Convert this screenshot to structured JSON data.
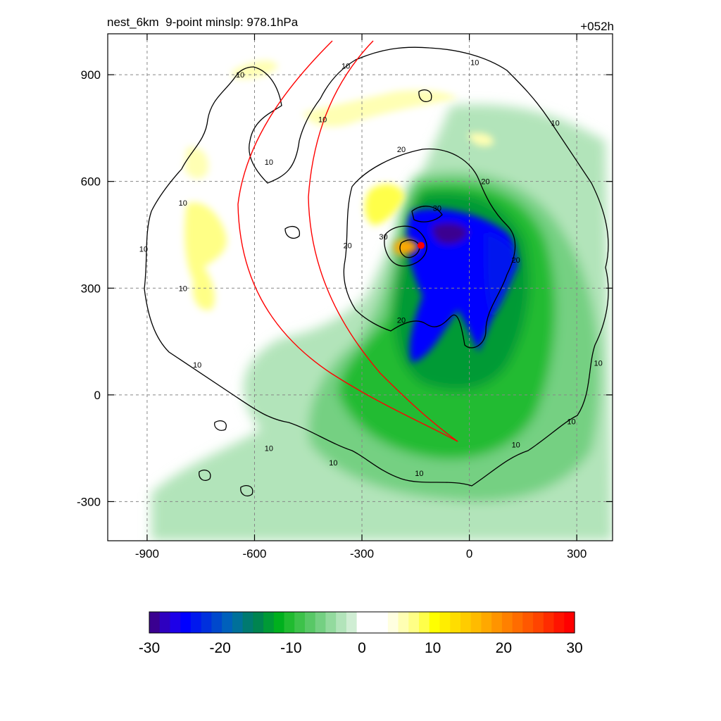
{
  "chart_data": {
    "type": "heatmap",
    "title_left": "nest_6km  9-point minslp: 978.1hPa",
    "title_right": "+052h",
    "xlabel": "",
    "ylabel": "",
    "xlim": [
      -1010,
      400
    ],
    "ylim": [
      -410,
      1015
    ],
    "x_ticks": [
      -900,
      -600,
      -300,
      0,
      300
    ],
    "y_ticks": [
      900,
      600,
      300,
      0,
      -300
    ],
    "grid": true,
    "colorbar": {
      "range": [
        -30,
        30
      ],
      "tick_values": [
        -30,
        -20,
        -10,
        0,
        10,
        20,
        30
      ],
      "tick_labels": [
        "-30",
        "-20",
        "-10",
        "0",
        "10",
        "20",
        "30"
      ],
      "colors": [
        "#3a0090",
        "#2e00c0",
        "#1d00e8",
        "#0000ff",
        "#0018ee",
        "#0030dd",
        "#0048cc",
        "#0060bb",
        "#00709a",
        "#007a70",
        "#008450",
        "#009a36",
        "#00b01e",
        "#20bb30",
        "#3dc24a",
        "#58c866",
        "#74d082",
        "#93da9e",
        "#b2e4ba",
        "#d0eed4",
        "#ffffff",
        "#ffffff",
        "#ffffff",
        "#ffffe0",
        "#ffffb3",
        "#ffff86",
        "#ffff4a",
        "#ffff00",
        "#ffee00",
        "#ffdd00",
        "#ffcc00",
        "#ffbb00",
        "#ffa800",
        "#ff9400",
        "#ff8000",
        "#ff6c00",
        "#ff5800",
        "#ff4400",
        "#ff2c00",
        "#ff1400",
        "#ff0000"
      ]
    },
    "contour_labels": [
      {
        "text": "10",
        "x": -560,
        "y": 655
      },
      {
        "text": "10",
        "x": -800,
        "y": 540
      },
      {
        "text": "10",
        "x": -910,
        "y": 410
      },
      {
        "text": "10",
        "x": -800,
        "y": 300
      },
      {
        "text": "10",
        "x": -760,
        "y": 85
      },
      {
        "text": "10",
        "x": -560,
        "y": -150
      },
      {
        "text": "10",
        "x": -380,
        "y": -190
      },
      {
        "text": "10",
        "x": -140,
        "y": -220
      },
      {
        "text": "10",
        "x": -410,
        "y": 775
      },
      {
        "text": "10",
        "x": -345,
        "y": 925
      },
      {
        "text": "10",
        "x": 15,
        "y": 935
      },
      {
        "text": "10",
        "x": 240,
        "y": 765
      },
      {
        "text": "10",
        "x": 360,
        "y": 90
      },
      {
        "text": "10",
        "x": 285,
        "y": -75
      },
      {
        "text": "10",
        "x": 130,
        "y": -140
      },
      {
        "text": "10",
        "x": -640,
        "y": 900
      },
      {
        "text": "20",
        "x": -190,
        "y": 690
      },
      {
        "text": "20",
        "x": 45,
        "y": 600
      },
      {
        "text": "20",
        "x": -340,
        "y": 420
      },
      {
        "text": "20",
        "x": -190,
        "y": 210
      },
      {
        "text": "20",
        "x": 130,
        "y": 380
      },
      {
        "text": "30",
        "x": -90,
        "y": 525
      },
      {
        "text": "30",
        "x": -240,
        "y": 445
      }
    ],
    "storm_center": {
      "x": -135,
      "y": 420
    },
    "series": []
  }
}
